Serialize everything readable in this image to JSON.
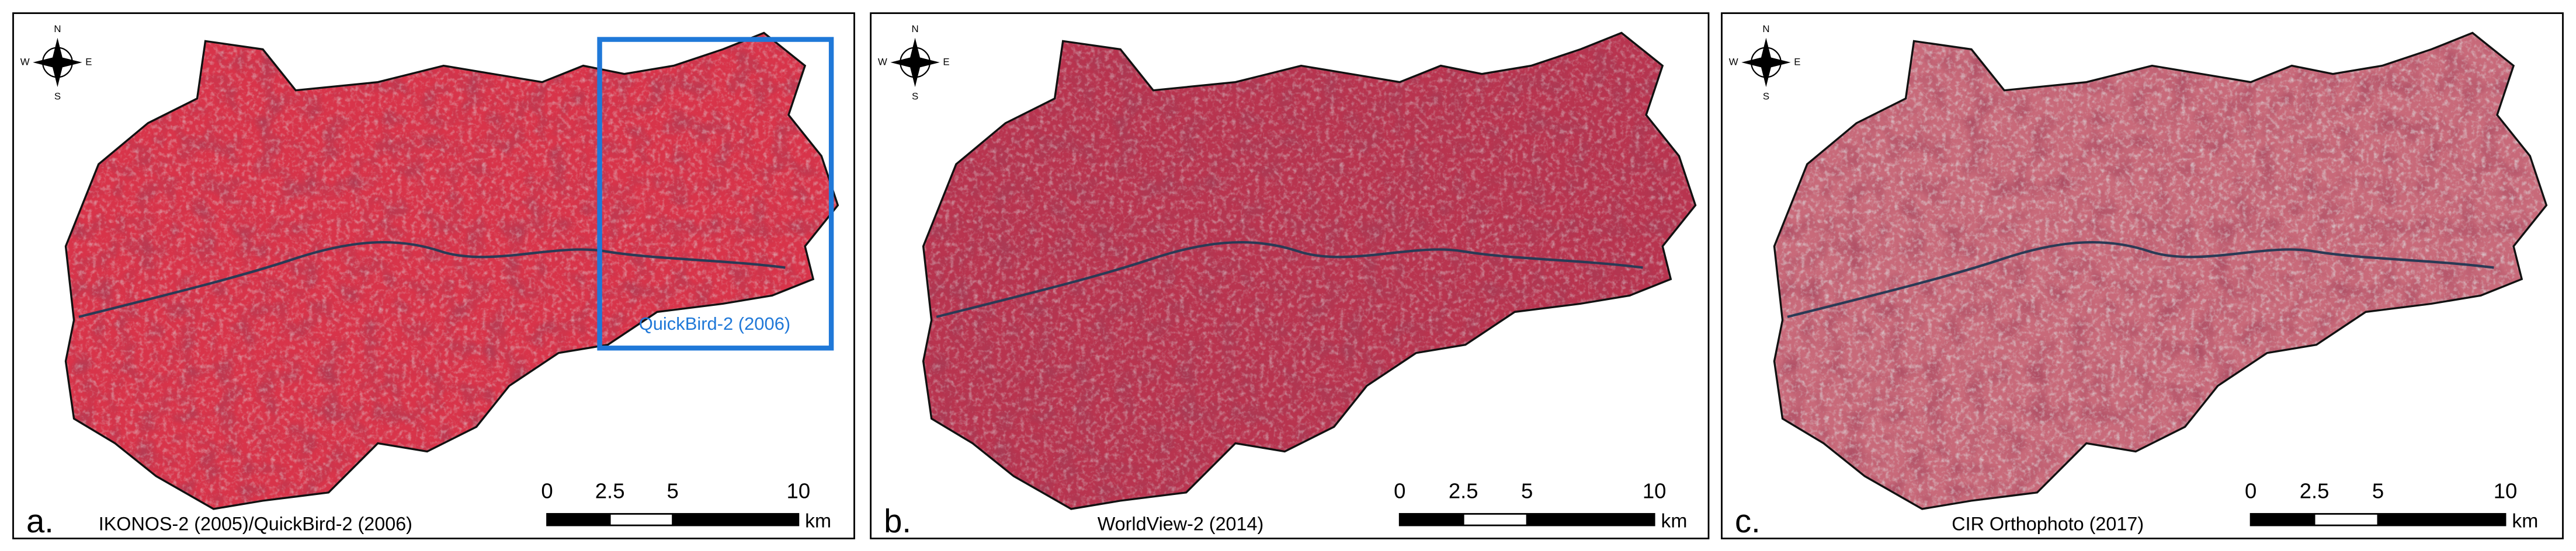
{
  "panels": [
    {
      "letter": "a.",
      "caption": "IKONOS-2 (2005)/QuickBird-2 (2006)",
      "inset_label": "QuickBird-2 (2006)",
      "compass": {
        "n": "N",
        "s": "S",
        "e": "E",
        "w": "W"
      },
      "scale_ticks": [
        0,
        2.5,
        5,
        10
      ],
      "scale_unit": "km"
    },
    {
      "letter": "b.",
      "caption": "WorldView-2 (2014)",
      "compass": {
        "n": "N",
        "s": "S",
        "e": "E",
        "w": "W"
      },
      "scale_ticks": [
        0,
        2.5,
        5,
        10
      ],
      "scale_unit": "km"
    },
    {
      "letter": "c.",
      "caption": "CIR Orthophoto (2017)",
      "compass": {
        "n": "N",
        "s": "S",
        "e": "E",
        "w": "W"
      },
      "scale_ticks": [
        0,
        2.5,
        5,
        10
      ],
      "scale_unit": "km"
    }
  ]
}
